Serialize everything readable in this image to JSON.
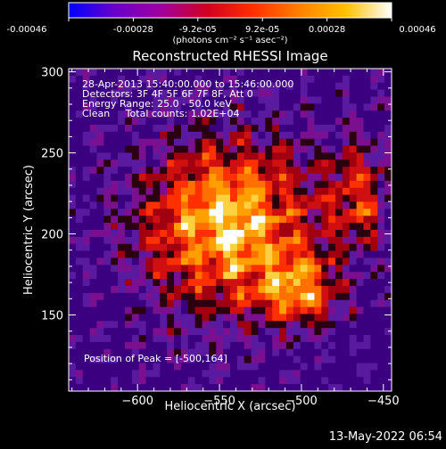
{
  "colorbar": {
    "colors": [
      "#0000ff",
      "#6a00c8",
      "#a000a0",
      "#d00020",
      "#ff3000",
      "#ff8000",
      "#ffc000",
      "#ffffff"
    ],
    "tick_labels": [
      "-0.00046",
      "-0.00028",
      "-9.2e-05",
      "9.2e-05",
      "0.00028",
      "0.00046"
    ],
    "unit_label": "(photons cm⁻² s⁻¹ asec⁻²)"
  },
  "chart_data": {
    "type": "heatmap",
    "title": "Reconstructed RHESSI Image",
    "xlabel": "Heliocentric X (arcsec)",
    "ylabel": "Heliocentric Y (arcsec)",
    "xlim": [
      -642,
      -445
    ],
    "ylim": [
      103,
      302
    ],
    "x_ticks": [
      -600,
      -550,
      -500,
      -450
    ],
    "x_tick_labels": [
      "−600",
      "−550",
      "−500",
      "−450"
    ],
    "y_ticks": [
      150,
      200,
      250,
      300
    ],
    "y_tick_labels": [
      "150",
      "200",
      "250",
      "300"
    ],
    "value_range": [
      -0.00046,
      0.00046
    ],
    "peak": [
      -500,
      164
    ],
    "annotations": [
      "28-Apr-2013 15:40:00.000 to 15:46:00.000",
      "Detectors: 3F 4F 5F 6F 7F 8F, Att 0",
      "Energy Range: 25.0 - 50.0 keV",
      "Clean     Total counts: 1.02E+04",
      "Position of Peak = [-500,164]"
    ]
  },
  "footer": {
    "timestamp": "13-May-2022 06:54"
  }
}
